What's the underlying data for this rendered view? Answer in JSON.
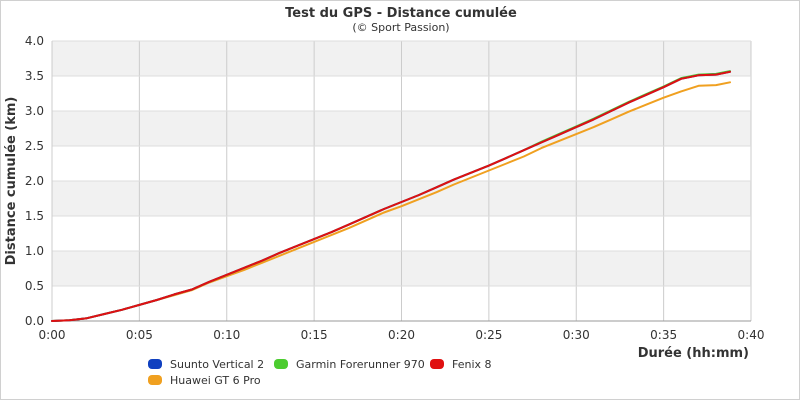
{
  "chart_data": {
    "type": "line",
    "title": "Test du GPS - Distance cumulée",
    "subtitle": "(© Sport Passion)",
    "xlabel": "Durée (hh:mm)",
    "ylabel": "Distance cumulée (km)",
    "x_unit": "minutes",
    "xlim": [
      0,
      40
    ],
    "ylim": [
      0,
      4
    ],
    "x_ticks": [
      "0:00",
      "0:05",
      "0:10",
      "0:15",
      "0:20",
      "0:25",
      "0:30",
      "0:35",
      "0:40"
    ],
    "y_ticks": [
      "0.0",
      "0.5",
      "1.0",
      "1.5",
      "2.0",
      "2.5",
      "3.0",
      "3.5",
      "4.0"
    ],
    "grid": true,
    "legend_position": "bottom-left",
    "series": [
      {
        "name": "Suunto Vertical 2",
        "color": "#1040c0",
        "x": [
          0,
          1,
          2,
          3,
          4,
          5,
          6,
          7,
          8,
          9,
          10,
          11,
          12,
          13,
          14,
          15,
          16,
          17,
          18,
          19,
          20,
          21,
          22,
          23,
          24,
          25,
          26,
          27,
          28,
          29,
          30,
          31,
          32,
          33,
          34,
          35,
          36,
          37,
          38,
          38.8
        ],
        "y": [
          0.0,
          0.01,
          0.04,
          0.1,
          0.16,
          0.23,
          0.3,
          0.38,
          0.45,
          0.56,
          0.66,
          0.76,
          0.86,
          0.97,
          1.07,
          1.17,
          1.27,
          1.38,
          1.49,
          1.6,
          1.7,
          1.8,
          1.91,
          2.02,
          2.12,
          2.22,
          2.33,
          2.44,
          2.55,
          2.66,
          2.77,
          2.88,
          3.0,
          3.12,
          3.23,
          3.34,
          3.46,
          3.51,
          3.52,
          3.56
        ]
      },
      {
        "name": "Garmin Forerunner 970",
        "color": "#4ccc30",
        "x": [
          0,
          1,
          2,
          3,
          4,
          5,
          6,
          7,
          8,
          9,
          10,
          11,
          12,
          13,
          14,
          15,
          16,
          17,
          18,
          19,
          20,
          21,
          22,
          23,
          24,
          25,
          26,
          27,
          28,
          29,
          30,
          31,
          32,
          33,
          34,
          35,
          36,
          37,
          38,
          38.8
        ],
        "y": [
          0.0,
          0.01,
          0.04,
          0.1,
          0.16,
          0.23,
          0.3,
          0.38,
          0.45,
          0.56,
          0.66,
          0.76,
          0.86,
          0.97,
          1.07,
          1.17,
          1.27,
          1.38,
          1.49,
          1.6,
          1.7,
          1.8,
          1.91,
          2.02,
          2.12,
          2.22,
          2.33,
          2.44,
          2.56,
          2.67,
          2.78,
          2.89,
          3.01,
          3.13,
          3.24,
          3.35,
          3.47,
          3.52,
          3.53,
          3.57
        ]
      },
      {
        "name": "Fenix 8",
        "color": "#e01010",
        "x": [
          0,
          1,
          2,
          3,
          4,
          5,
          6,
          7,
          8,
          9,
          10,
          11,
          12,
          13,
          14,
          15,
          16,
          17,
          18,
          19,
          20,
          21,
          22,
          23,
          24,
          25,
          26,
          27,
          28,
          29,
          30,
          31,
          32,
          33,
          34,
          35,
          36,
          37,
          38,
          38.8
        ],
        "y": [
          0.0,
          0.01,
          0.04,
          0.1,
          0.16,
          0.23,
          0.3,
          0.38,
          0.45,
          0.56,
          0.66,
          0.76,
          0.86,
          0.97,
          1.07,
          1.17,
          1.27,
          1.38,
          1.49,
          1.6,
          1.7,
          1.8,
          1.91,
          2.02,
          2.12,
          2.22,
          2.33,
          2.44,
          2.55,
          2.66,
          2.77,
          2.88,
          3.0,
          3.12,
          3.23,
          3.34,
          3.46,
          3.51,
          3.52,
          3.56
        ]
      },
      {
        "name": "Huawei GT 6 Pro",
        "color": "#f0a020",
        "x": [
          0,
          1,
          2,
          3,
          4,
          5,
          6,
          7,
          8,
          9,
          10,
          11,
          12,
          13,
          14,
          15,
          16,
          17,
          18,
          19,
          20,
          21,
          22,
          23,
          24,
          25,
          26,
          27,
          28,
          29,
          30,
          31,
          32,
          33,
          34,
          35,
          36,
          37,
          38,
          38.8
        ],
        "y": [
          0.0,
          0.01,
          0.04,
          0.1,
          0.16,
          0.23,
          0.3,
          0.37,
          0.44,
          0.55,
          0.64,
          0.73,
          0.83,
          0.93,
          1.03,
          1.13,
          1.23,
          1.33,
          1.44,
          1.55,
          1.64,
          1.74,
          1.84,
          1.95,
          2.05,
          2.15,
          2.25,
          2.35,
          2.47,
          2.57,
          2.67,
          2.77,
          2.88,
          2.99,
          3.09,
          3.19,
          3.28,
          3.36,
          3.37,
          3.41
        ]
      }
    ]
  }
}
